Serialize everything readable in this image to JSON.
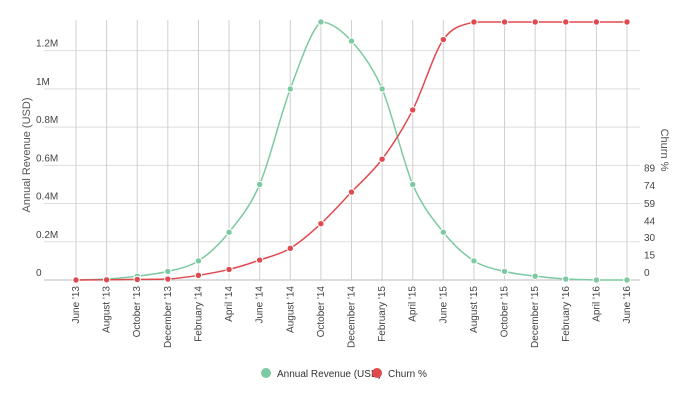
{
  "chart_data": {
    "type": "line",
    "x": [
      "June '13",
      "August '13",
      "October '13",
      "December '13",
      "February '14",
      "April '14",
      "June '14",
      "August '14",
      "October '14",
      "December '14",
      "February '15",
      "April '15",
      "June '15",
      "August '15",
      "October '15",
      "December '15",
      "February '16",
      "April '16",
      "June '16"
    ],
    "series": [
      {
        "name": "Annual Revenue (USD)",
        "axis": "left",
        "color": "#7cc9a2",
        "values": [
          0,
          5000,
          20000,
          45000,
          100000,
          250000,
          500000,
          1000000,
          1350000,
          1250000,
          1000000,
          500000,
          250000,
          100000,
          45000,
          20000,
          5000,
          0,
          0
        ]
      },
      {
        "name": "Churn %",
        "axis": "right",
        "color": "#e0494e",
        "values": [
          0,
          0.2,
          0.5,
          0.8,
          4,
          9,
          17,
          27,
          48,
          75,
          103,
          145,
          205,
          220,
          220,
          220,
          220,
          220,
          220
        ]
      }
    ],
    "y_left": {
      "label": "Annual Revenue (USD)",
      "ylim": [
        0,
        1350000
      ],
      "ticks": [
        0,
        200000,
        400000,
        600000,
        800000,
        1000000,
        1200000
      ],
      "tick_labels": [
        "0",
        "0.2M",
        "0.4M",
        "0.6M",
        "0.8M",
        "1M",
        "1.2M"
      ]
    },
    "y_right": {
      "label": "Churn %",
      "ylim": [
        0,
        220
      ],
      "ticks": [
        0,
        15,
        30,
        44,
        59,
        74,
        89
      ],
      "tick_labels": [
        "0",
        "15",
        "30",
        "44",
        "59",
        "74",
        "89"
      ]
    },
    "grid": true,
    "legend_position": "bottom-center"
  }
}
